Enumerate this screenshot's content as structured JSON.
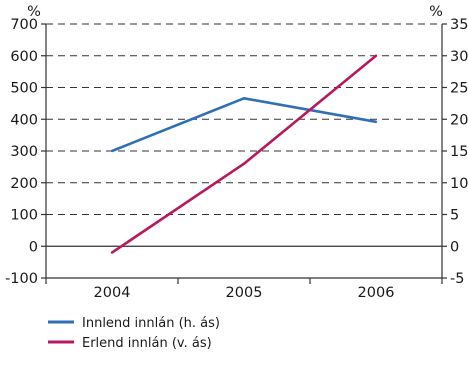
{
  "chart_data": {
    "type": "line",
    "categories": [
      "2004",
      "2005",
      "2006"
    ],
    "left_axis": {
      "unit": "%",
      "ylim": [
        -100,
        700
      ],
      "ticks": [
        -100,
        0,
        100,
        200,
        300,
        400,
        500,
        600,
        700
      ]
    },
    "right_axis": {
      "unit": "%",
      "ylim": [
        -5,
        35
      ],
      "ticks": [
        -5,
        0,
        5,
        10,
        15,
        20,
        25,
        30,
        35
      ]
    },
    "series": [
      {
        "name": "Innlend innlán (h. ás)",
        "axis": "right",
        "color": "#2f6fb5",
        "values": [
          15,
          23.3,
          19.6
        ]
      },
      {
        "name": "Erlend innlán (v. ás)",
        "axis": "left",
        "color": "#b8195c",
        "values": [
          -20,
          260,
          600
        ]
      }
    ],
    "grid": "dashed horizontal",
    "legend_position": "bottom-left"
  }
}
